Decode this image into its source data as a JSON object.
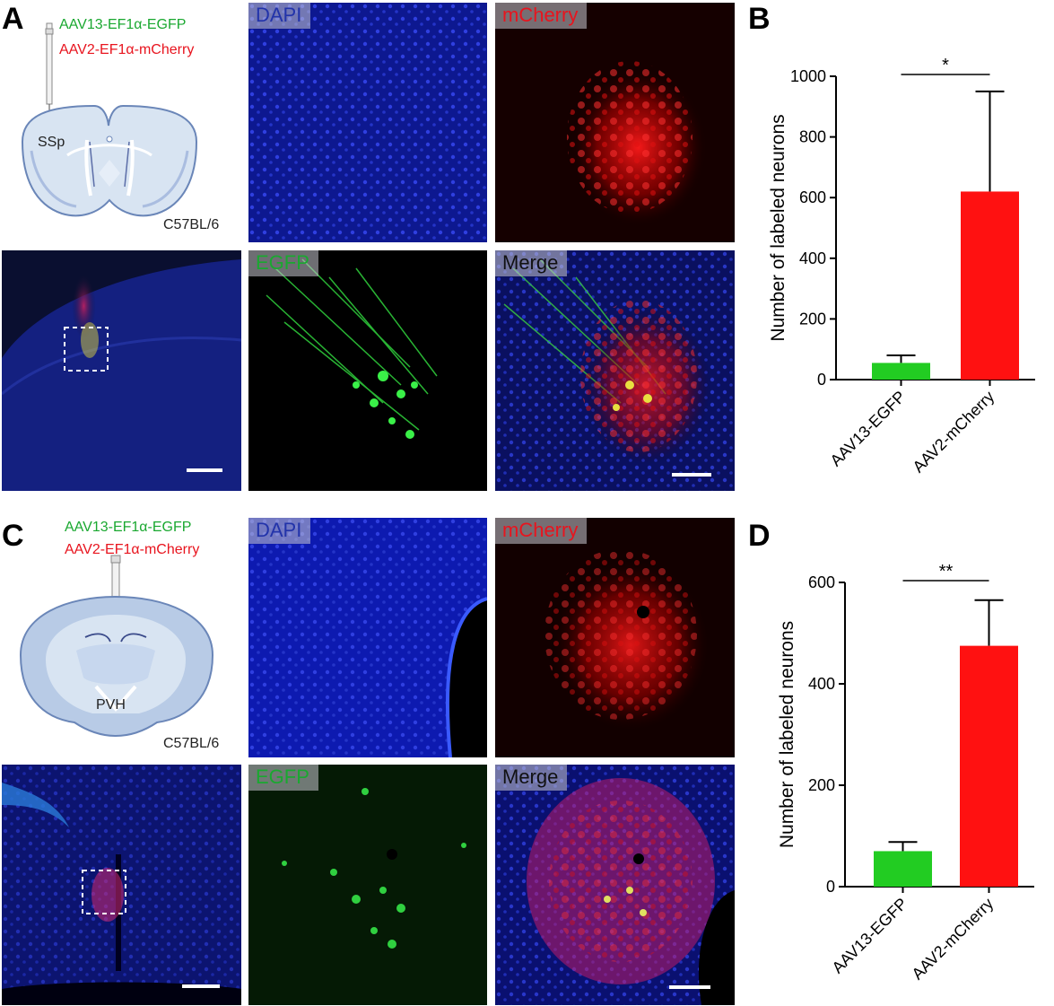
{
  "colors": {
    "egfp": "#1aa830",
    "mcherry": "#e8141e",
    "dapi": "#2233aa",
    "merge": "#111111",
    "bar_green": "#22cc22",
    "bar_red": "#ff1111"
  },
  "panels": {
    "A": {
      "letter": "A",
      "virus1": "AAV13-EF1α-EGFP",
      "virus2": "AAV2-EF1α-mCherry",
      "region": "SSp",
      "strain": "C57BL/6",
      "labels": {
        "dapi": "DAPI",
        "mcherry": "mCherry",
        "egfp": "EGFP",
        "merge": "Merge"
      }
    },
    "B": {
      "letter": "B"
    },
    "C": {
      "letter": "C",
      "virus1": "AAV13-EF1α-EGFP",
      "virus2": "AAV2-EF1α-mCherry",
      "region": "PVH",
      "strain": "C57BL/6",
      "labels": {
        "dapi": "DAPI",
        "mcherry": "mCherry",
        "egfp": "EGFP",
        "merge": "Merge"
      }
    },
    "D": {
      "letter": "D"
    }
  },
  "chart_data": [
    {
      "type": "bar",
      "panel": "B",
      "categories": [
        "AAV13-EGFP",
        "AAV2-mCherry"
      ],
      "values": [
        55,
        620
      ],
      "errors": [
        25,
        330
      ],
      "ylabel": "Number of labeled neurons",
      "ylim": [
        0,
        1000
      ],
      "yticks": [
        0,
        200,
        400,
        600,
        800,
        1000
      ],
      "significance": "*"
    },
    {
      "type": "bar",
      "panel": "D",
      "categories": [
        "AAV13-EGFP",
        "AAV2-mCherry"
      ],
      "values": [
        70,
        475
      ],
      "errors": [
        18,
        90
      ],
      "ylabel": "Number of labeled neurons",
      "ylim": [
        0,
        600
      ],
      "yticks": [
        0,
        200,
        400,
        600
      ],
      "significance": "**"
    }
  ]
}
